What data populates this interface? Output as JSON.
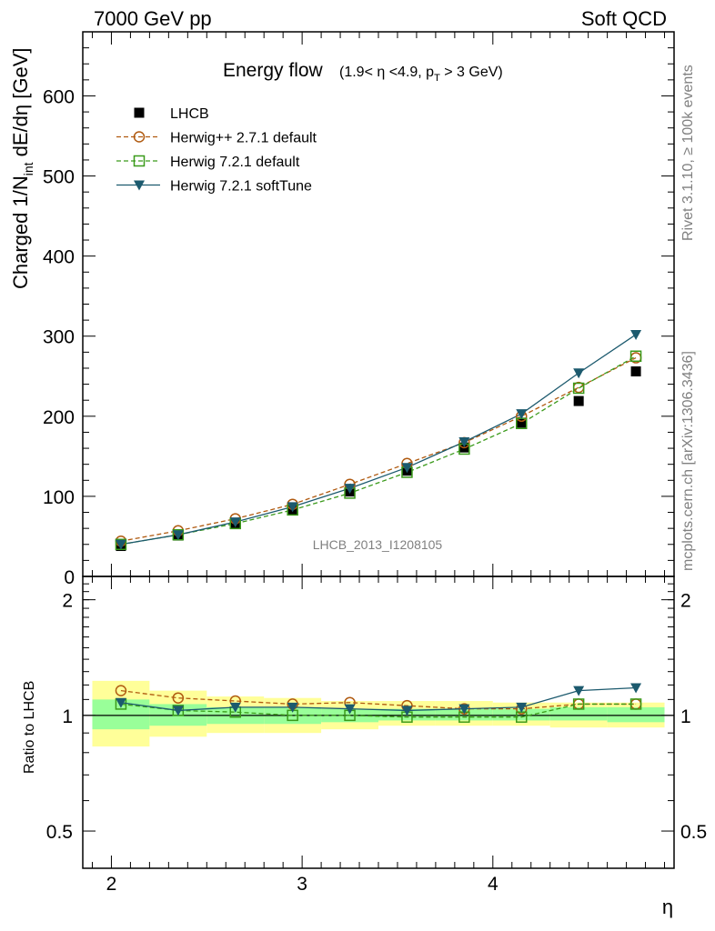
{
  "header": {
    "left": "7000 GeV pp",
    "right": "Soft QCD"
  },
  "side": {
    "rivet": "Rivet 3.1.10, ≥ 100k events",
    "mcplots": "mcplots.cern.ch [arXiv:1306.3436]"
  },
  "watermark": "LHCB_2013_I1208105",
  "colors": {
    "data": "#000000",
    "herwigpp": "#b05a10",
    "herwig721": "#3a9a1a",
    "softtune": "#1c5a6e",
    "band_outer": "#ffff99",
    "band_inner": "#99ff99"
  },
  "chart_data": [
    {
      "type": "scatter",
      "title": "Energy flow",
      "subtitle": "(1.9< η <4.9, p_T > 3 GeV)",
      "xlabel": "η",
      "ylabel": "Charged 1/N_int dE/dη [GeV]",
      "xlim": [
        1.85,
        4.95
      ],
      "ylim": [
        0,
        680
      ],
      "yticks": [
        0,
        100,
        200,
        300,
        400,
        500,
        600
      ],
      "xticks": [
        2,
        3,
        4
      ],
      "legend_position": "top-left",
      "x": [
        2.05,
        2.35,
        2.65,
        2.95,
        3.25,
        3.55,
        3.85,
        4.15,
        4.45,
        4.75
      ],
      "series": [
        {
          "name": "LHCB",
          "marker": "filled-square",
          "values": [
            38,
            51,
            66,
            83,
            106,
            132,
            161,
            192,
            219,
            256
          ]
        },
        {
          "name": "Herwig++ 2.7.1 default",
          "marker": "open-circle",
          "line": "dashed",
          "values": [
            44,
            57,
            72,
            90,
            115,
            141,
            167,
            200,
            236,
            273
          ]
        },
        {
          "name": "Herwig 7.2.1 default",
          "marker": "open-square",
          "line": "dashed",
          "values": [
            40,
            52,
            66,
            83,
            104,
            130,
            159,
            191,
            235,
            275
          ]
        },
        {
          "name": "Herwig 7.2.1 softTune",
          "marker": "filled-triangle-down",
          "line": "solid",
          "values": [
            40,
            52,
            68,
            87,
            110,
            136,
            168,
            203,
            254,
            302
          ]
        }
      ]
    },
    {
      "type": "scatter",
      "ylabel": "Ratio to LHCB",
      "xlabel": "η",
      "ylim": [
        0.4,
        2.3
      ],
      "yscale": "log",
      "yticks": [
        0.5,
        1,
        2
      ],
      "xticks": [
        2,
        3,
        4
      ],
      "x": [
        2.05,
        2.35,
        2.65,
        2.95,
        3.25,
        3.55,
        3.85,
        4.15,
        4.45,
        4.75
      ],
      "bin_edges": [
        1.9,
        2.2,
        2.5,
        2.8,
        3.1,
        3.4,
        3.7,
        4.0,
        4.3,
        4.6,
        4.9
      ],
      "band_outer": [
        [
          0.83,
          1.23
        ],
        [
          0.88,
          1.16
        ],
        [
          0.9,
          1.12
        ],
        [
          0.9,
          1.11
        ],
        [
          0.92,
          1.09
        ],
        [
          0.94,
          1.09
        ],
        [
          0.94,
          1.09
        ],
        [
          0.94,
          1.08
        ],
        [
          0.93,
          1.08
        ],
        [
          0.93,
          1.08
        ]
      ],
      "band_inner": [
        [
          0.92,
          1.1
        ],
        [
          0.94,
          1.07
        ],
        [
          0.95,
          1.05
        ],
        [
          0.95,
          1.05
        ],
        [
          0.96,
          1.04
        ],
        [
          0.97,
          1.04
        ],
        [
          0.97,
          1.04
        ],
        [
          0.97,
          1.04
        ],
        [
          0.97,
          1.05
        ],
        [
          0.96,
          1.05
        ]
      ],
      "series": [
        {
          "name": "Herwig++ 2.7.1 default",
          "values": [
            1.16,
            1.11,
            1.09,
            1.07,
            1.08,
            1.06,
            1.04,
            1.04,
            1.07,
            1.07
          ]
        },
        {
          "name": "Herwig 7.2.1 default",
          "values": [
            1.07,
            1.03,
            1.02,
            1.0,
            1.0,
            0.99,
            0.99,
            0.99,
            1.07,
            1.07
          ]
        },
        {
          "name": "Herwig 7.2.1 softTune",
          "values": [
            1.08,
            1.03,
            1.05,
            1.05,
            1.04,
            1.03,
            1.04,
            1.05,
            1.16,
            1.18
          ]
        }
      ]
    }
  ]
}
